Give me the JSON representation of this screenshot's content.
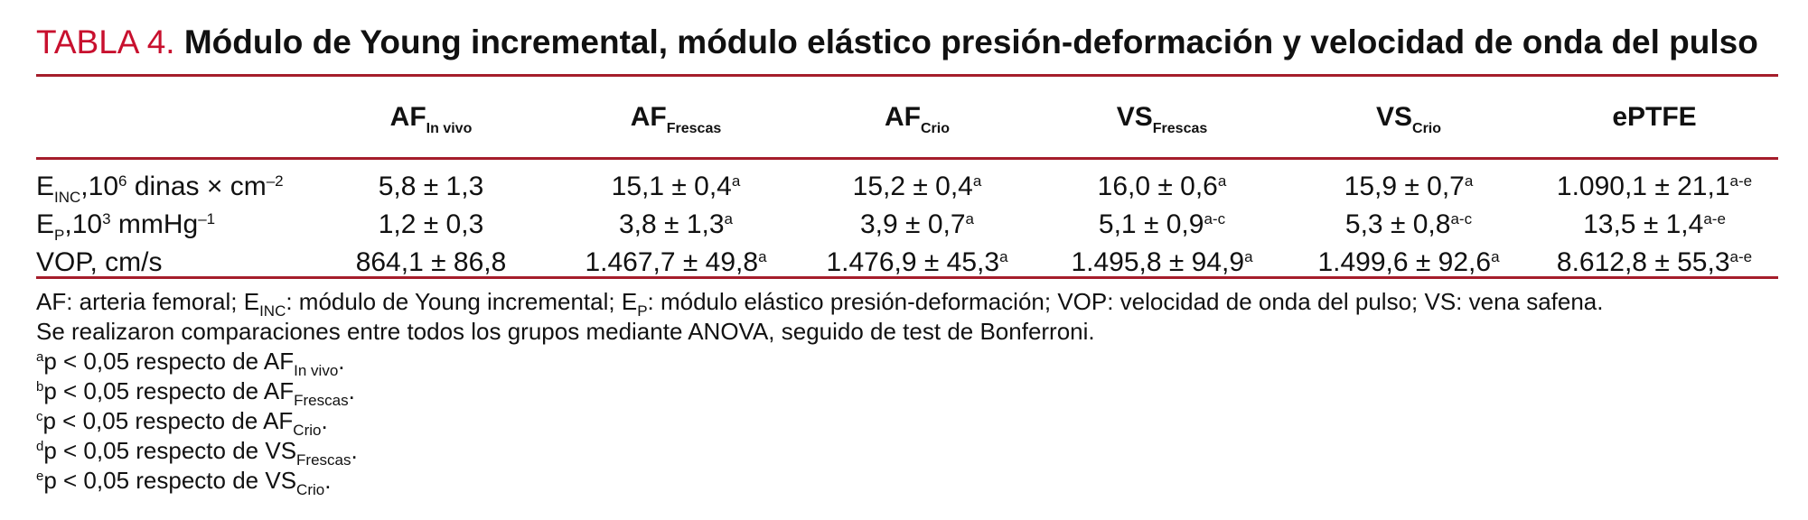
{
  "title": {
    "label": "TABLA 4.",
    "text": "Módulo de Young incremental, módulo elástico presión-deformación y velocidad de onda del pulso"
  },
  "columns": [
    {
      "main": "AF",
      "sub": "In vivo"
    },
    {
      "main": "AF",
      "sub": "Frescas"
    },
    {
      "main": "AF",
      "sub": "Crio"
    },
    {
      "main": "VS",
      "sub": "Frescas"
    },
    {
      "main": "VS",
      "sub": "Crio"
    },
    {
      "main": "ePTFE",
      "sub": ""
    }
  ],
  "rows": [
    {
      "label": {
        "main": "E",
        "sub": "INC",
        "rest1": ",10",
        "sup": "6",
        "rest2": " dinas × cm",
        "sup2": "–2"
      },
      "cells": [
        {
          "value": "5,8 ± 1,3",
          "mark": ""
        },
        {
          "value": "15,1 ± 0,4",
          "mark": "a"
        },
        {
          "value": "15,2 ± 0,4",
          "mark": "a"
        },
        {
          "value": "16,0 ± 0,6",
          "mark": "a"
        },
        {
          "value": "15,9 ± 0,7",
          "mark": "a"
        },
        {
          "value": "1.090,1 ± 21,1",
          "mark": "a-e"
        }
      ]
    },
    {
      "label": {
        "main": "E",
        "sub": "P",
        "rest1": ",10",
        "sup": "3",
        "rest2": " mmHg",
        "sup2": "–1"
      },
      "cells": [
        {
          "value": "1,2 ± 0,3",
          "mark": ""
        },
        {
          "value": "3,8 ± 1,3",
          "mark": "a"
        },
        {
          "value": "3,9 ± 0,7",
          "mark": "a"
        },
        {
          "value": "5,1 ± 0,9",
          "mark": "a-c"
        },
        {
          "value": "5,3 ± 0,8",
          "mark": "a-c"
        },
        {
          "value": "13,5 ± 1,4",
          "mark": "a-e"
        }
      ]
    },
    {
      "label": {
        "main": "VOP, cm/s",
        "sub": "",
        "rest1": "",
        "sup": "",
        "rest2": "",
        "sup2": ""
      },
      "cells": [
        {
          "value": "864,1 ± 86,8",
          "mark": ""
        },
        {
          "value": "1.467,7 ± 49,8",
          "mark": "a"
        },
        {
          "value": "1.476,9 ± 45,3",
          "mark": "a"
        },
        {
          "value": "1.495,8 ± 94,9",
          "mark": "a"
        },
        {
          "value": "1.499,6 ± 92,6",
          "mark": "a"
        },
        {
          "value": "8.612,8 ± 55,3",
          "mark": "a-e"
        }
      ]
    }
  ],
  "notes": {
    "abbrev": {
      "p1": "AF: arteria femoral; E",
      "s1": "INC",
      "p2": ": módulo de Young incremental; E",
      "s2": "P",
      "p3": ": módulo elástico presión-deformación; VOP: velocidad de onda del pulso; VS: vena safena."
    },
    "method": "Se realizaron comparaciones entre todos los grupos mediante ANOVA, seguido de test de Bonferroni.",
    "footnotes": [
      {
        "mark": "a",
        "text": "p < 0,05 respecto de AF",
        "sub": "In vivo",
        "end": "."
      },
      {
        "mark": "b",
        "text": "p < 0,05 respecto de AF",
        "sub": "Frescas",
        "end": "."
      },
      {
        "mark": "c",
        "text": "p < 0,05 respecto de AF",
        "sub": "Crio",
        "end": "."
      },
      {
        "mark": "d",
        "text": "p < 0,05 respecto de VS",
        "sub": "Frescas",
        "end": "."
      },
      {
        "mark": "e",
        "text": "p < 0,05 respecto de VS",
        "sub": "Crio",
        "end": "."
      }
    ]
  },
  "colors": {
    "accent": "#c8102e",
    "rule": "#a51d2b"
  }
}
